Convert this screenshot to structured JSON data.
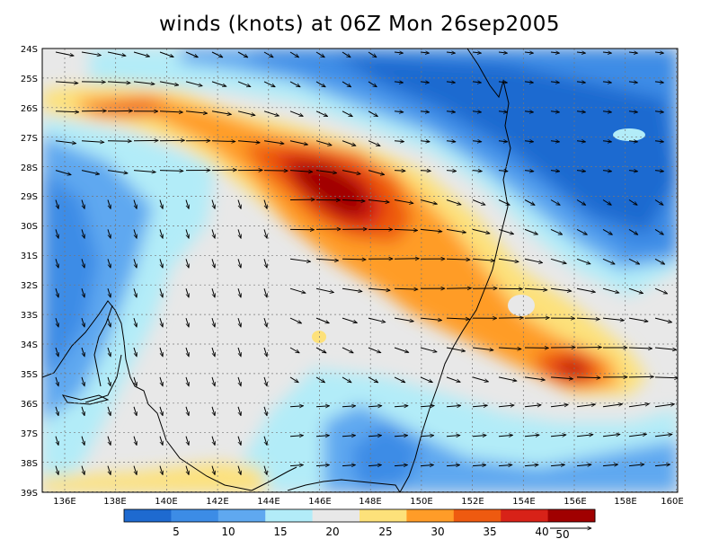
{
  "title": "winds (knots) at 06Z Mon 26sep2005",
  "axes": {
    "lon_labels": [
      "136E",
      "138E",
      "140E",
      "142E",
      "144E",
      "146E",
      "148E",
      "150E",
      "152E",
      "154E",
      "156E",
      "158E",
      "160E"
    ],
    "lat_labels": [
      "24S",
      "25S",
      "26S",
      "27S",
      "28S",
      "29S",
      "30S",
      "31S",
      "32S",
      "33S",
      "34S",
      "35S",
      "36S",
      "37S",
      "38S",
      "39S"
    ]
  },
  "legend": {
    "levels": [
      "5",
      "10",
      "15",
      "20",
      "25",
      "30",
      "35",
      "40"
    ],
    "colors": [
      "#1e6ad0",
      "#3c8ce6",
      "#5fa8f0",
      "#b2ecf8",
      "#e8e8e8",
      "#fde17a",
      "#ff9c28",
      "#ee5a10",
      "#d82218",
      "#a00000"
    ],
    "arrow_label": "50"
  },
  "map_colors": {
    "land_outline": "#000000",
    "grid": "#777777"
  }
}
